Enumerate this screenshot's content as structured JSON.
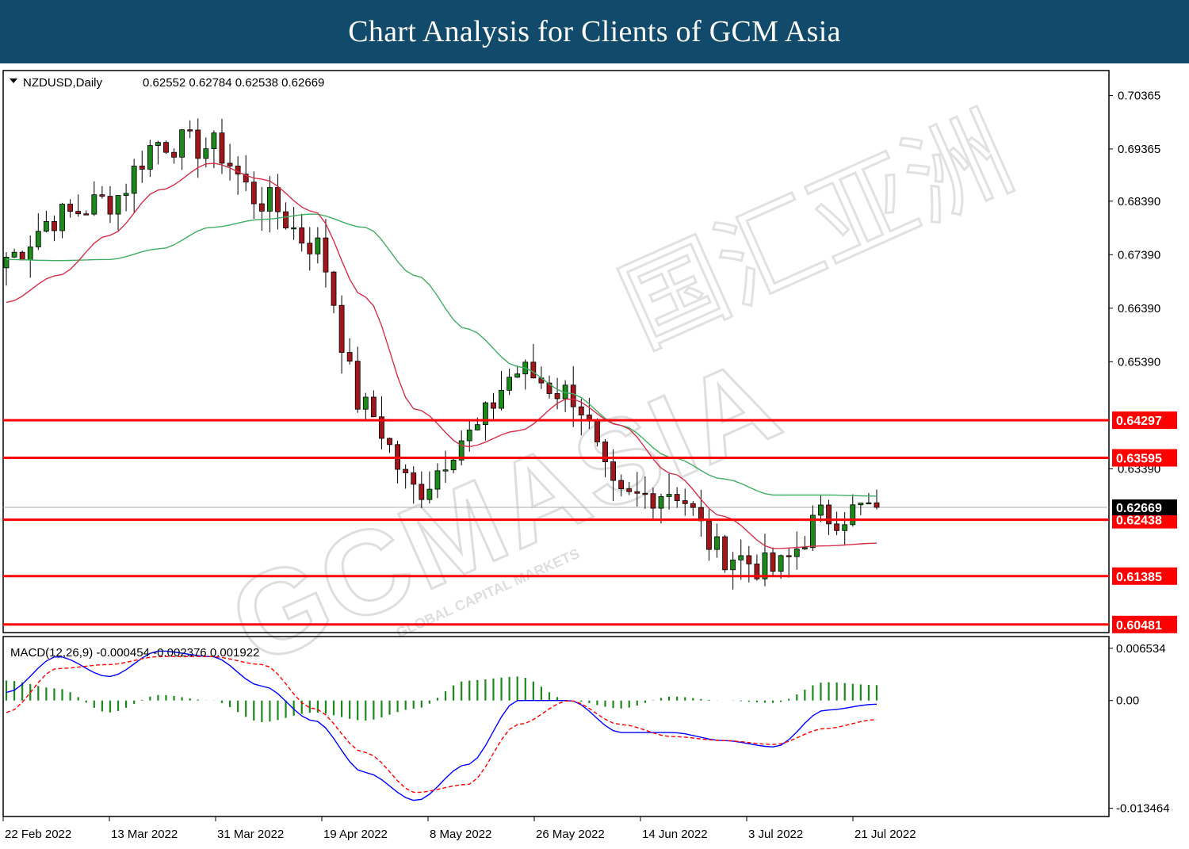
{
  "header": {
    "title": "Chart Analysis for Clients of GCM Asia"
  },
  "colors": {
    "header_bg": "#124a6b",
    "bull": "#1b8a1b",
    "bear": "#a0161b",
    "ma_fast": "#d6304a",
    "ma_slow": "#3fae62",
    "level": "#ff0000",
    "macd_line": "#0000ff",
    "signal_line": "#ff0000",
    "histogram": "#1b8a1b"
  },
  "main_panel": {
    "symbol": "NZDUSD,Daily",
    "ohlc": "0.62552 0.62784 0.62538 0.62669",
    "price_ticks": [
      "0.70365",
      "0.69365",
      "0.68390",
      "0.67390",
      "0.66390",
      "0.65390",
      "0.63390"
    ],
    "current_price": "0.62669",
    "levels": [
      "0.64297",
      "0.63595",
      "0.62438",
      "0.61385",
      "0.60481"
    ]
  },
  "macd_panel": {
    "label": "MACD(12,26,9) -0.000454 -0.002376 0.001922",
    "ticks": [
      "0.006534",
      "0.00",
      "-0.013464"
    ]
  },
  "x_labels": [
    "22 Feb 2022",
    "13 Mar 2022",
    "31 Mar 2022",
    "19 Apr 2022",
    "8 May 2022",
    "26 May 2022",
    "14 Jun 2022",
    "3 Jul 2022",
    "21 Jul 2022"
  ],
  "watermark": {
    "brand": "GCMASIA",
    "tagline": "GLOBAL CAPITAL MARKETS",
    "cn": "国汇亚洲"
  },
  "chart_data": {
    "type": "candlestick",
    "instrument": "NZDUSD",
    "timeframe": "Daily",
    "y_range": [
      0.6033,
      0.7083
    ],
    "macd_range": [
      -0.0145,
      0.008
    ],
    "anchors": [
      {
        "date": "22 Feb",
        "close": 0.6735,
        "ma_fast": 0.665,
        "ma_slow": 0.673,
        "macd": 0.001,
        "signal": -0.0015
      },
      {
        "date": "1 Mar",
        "close": 0.681,
        "ma_fast": 0.67,
        "ma_slow": 0.6728,
        "macd": 0.0055,
        "signal": 0.004
      },
      {
        "date": "13 Mar",
        "close": 0.684,
        "ma_fast": 0.6775,
        "ma_slow": 0.673,
        "macd": 0.003,
        "signal": 0.0045
      },
      {
        "date": "22 Mar",
        "close": 0.695,
        "ma_fast": 0.686,
        "ma_slow": 0.675,
        "macd": 0.0062,
        "signal": 0.0055
      },
      {
        "date": "31 Mar",
        "close": 0.694,
        "ma_fast": 0.691,
        "ma_slow": 0.679,
        "macd": 0.0055,
        "signal": 0.0055
      },
      {
        "date": "8 Apr",
        "close": 0.684,
        "ma_fast": 0.688,
        "ma_slow": 0.6805,
        "macd": 0.0018,
        "signal": 0.0045
      },
      {
        "date": "19 Apr",
        "close": 0.676,
        "ma_fast": 0.682,
        "ma_slow": 0.6815,
        "macd": -0.0025,
        "signal": -0.001
      },
      {
        "date": "28 Apr",
        "close": 0.645,
        "ma_fast": 0.666,
        "ma_slow": 0.679,
        "macd": -0.009,
        "signal": -0.0065
      },
      {
        "date": "8 May",
        "close": 0.63,
        "ma_fast": 0.645,
        "ma_slow": 0.67,
        "macd": -0.0125,
        "signal": -0.0115
      },
      {
        "date": "17 May",
        "close": 0.64,
        "ma_fast": 0.638,
        "ma_slow": 0.66,
        "macd": -0.008,
        "signal": -0.0105
      },
      {
        "date": "26 May",
        "close": 0.652,
        "ma_fast": 0.641,
        "ma_slow": 0.653,
        "macd": 0.0,
        "signal": -0.003
      },
      {
        "date": "3 Jun",
        "close": 0.648,
        "ma_fast": 0.647,
        "ma_slow": 0.648,
        "macd": 0.0,
        "signal": 0.0
      },
      {
        "date": "14 Jun",
        "close": 0.628,
        "ma_fast": 0.642,
        "ma_slow": 0.642,
        "macd": -0.004,
        "signal": -0.003
      },
      {
        "date": "24 Jun",
        "close": 0.63,
        "ma_fast": 0.633,
        "ma_slow": 0.636,
        "macd": -0.004,
        "signal": -0.0045
      },
      {
        "date": "3 Jul",
        "close": 0.618,
        "ma_fast": 0.625,
        "ma_slow": 0.632,
        "macd": -0.005,
        "signal": -0.005
      },
      {
        "date": "12 Jul",
        "close": 0.615,
        "ma_fast": 0.619,
        "ma_slow": 0.629,
        "macd": -0.0058,
        "signal": -0.0055
      },
      {
        "date": "21 Jul",
        "close": 0.625,
        "ma_fast": 0.6195,
        "ma_slow": 0.629,
        "macd": -0.0012,
        "signal": -0.0035
      },
      {
        "date": "27 Jul",
        "close": 0.6267,
        "ma_fast": 0.62,
        "ma_slow": 0.6288,
        "macd": -0.000454,
        "signal": -0.002376
      }
    ]
  }
}
